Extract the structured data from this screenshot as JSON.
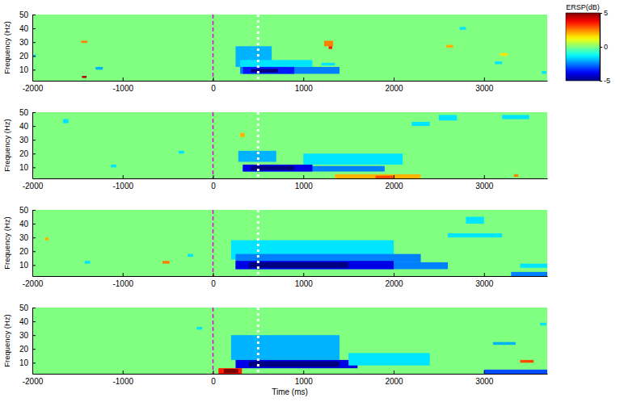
{
  "chart_data": [
    {
      "type": "heatmap",
      "y_label": "Frequency (Hz)",
      "xlim": [
        -2000,
        3700
      ],
      "xticks": [
        -2000,
        -1000,
        0,
        1000,
        2000,
        3000
      ],
      "ylim": [
        2,
        50
      ],
      "yticks": [
        10,
        20,
        30,
        40,
        50
      ],
      "colorbar": {
        "title": "ERSP(dB)",
        "range": [
          -5,
          5
        ],
        "ticks": [
          -5,
          0,
          5
        ]
      },
      "lines": [
        {
          "x": 0,
          "color": "#e000e0",
          "line_style": "dashed"
        },
        {
          "x": 500,
          "color": "#ffffff",
          "line_style": "dotted"
        }
      ],
      "cells": [
        {
          "x": [
            -1990,
            -1960
          ],
          "y": [
            19,
            21
          ],
          "value": -1.5
        },
        {
          "x": [
            -1460,
            -1390
          ],
          "y": [
            29.5,
            31
          ],
          "value": 2.5
        },
        {
          "x": [
            -1450,
            -1400
          ],
          "y": [
            4,
            5.5
          ],
          "value": 4.5
        },
        {
          "x": [
            -1300,
            -1220
          ],
          "y": [
            10,
            12
          ],
          "value": -2
        },
        {
          "x": [
            250,
            650
          ],
          "y": [
            12,
            27
          ],
          "value": -2
        },
        {
          "x": [
            300,
            1100
          ],
          "y": [
            12,
            17
          ],
          "value": -1.5
        },
        {
          "x": [
            300,
            1400
          ],
          "y": [
            7,
            12
          ],
          "value": -2.5
        },
        {
          "x": [
            330,
            900
          ],
          "y": [
            7,
            12
          ],
          "value": -3.5
        },
        {
          "x": [
            420,
            720
          ],
          "y": [
            8,
            10.5
          ],
          "value": -5
        },
        {
          "x": [
            1200,
            1350
          ],
          "y": [
            13,
            15
          ],
          "value": -1.5
        },
        {
          "x": [
            1230,
            1330
          ],
          "y": [
            27,
            31
          ],
          "value": 2.5
        },
        {
          "x": [
            1280,
            1320
          ],
          "y": [
            25,
            27
          ],
          "value": 3.5
        },
        {
          "x": [
            2580,
            2660
          ],
          "y": [
            26,
            28
          ],
          "value": 2
        },
        {
          "x": [
            2730,
            2800
          ],
          "y": [
            39,
            41
          ],
          "value": -1.5
        },
        {
          "x": [
            3180,
            3260
          ],
          "y": [
            20,
            22
          ],
          "value": 1.5
        },
        {
          "x": [
            3120,
            3200
          ],
          "y": [
            14,
            16
          ],
          "value": -1.5
        },
        {
          "x": [
            3640,
            3690
          ],
          "y": [
            7,
            9
          ],
          "value": -1.5
        }
      ]
    },
    {
      "type": "heatmap",
      "y_label": "Frequency (Hz)",
      "xlim": [
        -2000,
        3700
      ],
      "xticks": [
        -2000,
        -1000,
        0,
        1000,
        2000,
        3000
      ],
      "ylim": [
        2,
        50
      ],
      "yticks": [
        10,
        20,
        30,
        40,
        50
      ],
      "lines": [
        {
          "x": 0,
          "color": "#e000e0",
          "line_style": "dashed"
        },
        {
          "x": 500,
          "color": "#ffffff",
          "line_style": "dotted"
        }
      ],
      "cells": [
        {
          "x": [
            -1660,
            -1600
          ],
          "y": [
            42,
            45
          ],
          "value": -1.5
        },
        {
          "x": [
            -1130,
            -1070
          ],
          "y": [
            10,
            12
          ],
          "value": -1.5
        },
        {
          "x": [
            -380,
            -320
          ],
          "y": [
            20,
            22
          ],
          "value": -1.5
        },
        {
          "x": [
            300,
            350
          ],
          "y": [
            32,
            35
          ],
          "value": 2
        },
        {
          "x": [
            280,
            700
          ],
          "y": [
            14,
            22
          ],
          "value": -2
        },
        {
          "x": [
            1000,
            2100
          ],
          "y": [
            12,
            20
          ],
          "value": -1.5
        },
        {
          "x": [
            330,
            1900
          ],
          "y": [
            7,
            11
          ],
          "value": -2.5
        },
        {
          "x": [
            330,
            1100
          ],
          "y": [
            7,
            12
          ],
          "value": -4
        },
        {
          "x": [
            420,
            900
          ],
          "y": [
            8,
            11
          ],
          "value": -5
        },
        {
          "x": [
            1350,
            2300
          ],
          "y": [
            2,
            5
          ],
          "value": 2
        },
        {
          "x": [
            1800,
            2000
          ],
          "y": [
            2,
            4
          ],
          "value": 3
        },
        {
          "x": [
            2200,
            2400
          ],
          "y": [
            40,
            43
          ],
          "value": -1.5
        },
        {
          "x": [
            2500,
            2700
          ],
          "y": [
            44,
            48
          ],
          "value": -1.5
        },
        {
          "x": [
            3200,
            3500
          ],
          "y": [
            45,
            48
          ],
          "value": -1.5
        },
        {
          "x": [
            3330,
            3380
          ],
          "y": [
            3,
            5
          ],
          "value": 2.5
        }
      ]
    },
    {
      "type": "heatmap",
      "y_label": "Frequency (Hz)",
      "xlim": [
        -2000,
        3700
      ],
      "xticks": [
        -2000,
        -1000,
        0,
        1000,
        2000,
        3000
      ],
      "ylim": [
        2,
        50
      ],
      "yticks": [
        10,
        20,
        30,
        40,
        50
      ],
      "lines": [
        {
          "x": 0,
          "color": "#e000e0",
          "line_style": "dashed"
        },
        {
          "x": 500,
          "color": "#ffffff",
          "line_style": "dotted"
        }
      ],
      "cells": [
        {
          "x": [
            -1860,
            -1820
          ],
          "y": [
            28,
            30
          ],
          "value": 2
        },
        {
          "x": [
            -1420,
            -1360
          ],
          "y": [
            11,
            13
          ],
          "value": -1.5
        },
        {
          "x": [
            -560,
            -480
          ],
          "y": [
            11,
            13
          ],
          "value": 2.5
        },
        {
          "x": [
            -280,
            -220
          ],
          "y": [
            16,
            18
          ],
          "value": -1.5
        },
        {
          "x": [
            200,
            2000
          ],
          "y": [
            14,
            28
          ],
          "value": -1.5
        },
        {
          "x": [
            250,
            2300
          ],
          "y": [
            12,
            18
          ],
          "value": -2.5
        },
        {
          "x": [
            250,
            2600
          ],
          "y": [
            7,
            12
          ],
          "value": -2.5
        },
        {
          "x": [
            250,
            2000
          ],
          "y": [
            7,
            13
          ],
          "value": -4
        },
        {
          "x": [
            400,
            1500
          ],
          "y": [
            8,
            12
          ],
          "value": -5
        },
        {
          "x": [
            2600,
            3200
          ],
          "y": [
            30,
            33
          ],
          "value": -1.5
        },
        {
          "x": [
            2800,
            3000
          ],
          "y": [
            40,
            45
          ],
          "value": -1.5
        },
        {
          "x": [
            3300,
            3700
          ],
          "y": [
            2,
            5
          ],
          "value": -2.5
        },
        {
          "x": [
            3400,
            3700
          ],
          "y": [
            8,
            11
          ],
          "value": -1.5
        }
      ]
    },
    {
      "type": "heatmap",
      "y_label": "Frequency (Hz)",
      "x_label": "Time (ms)",
      "xlim": [
        -2000,
        3700
      ],
      "xticks": [
        -2000,
        -1000,
        0,
        1000,
        2000,
        3000
      ],
      "ylim": [
        2,
        50
      ],
      "yticks": [
        10,
        20,
        30,
        40,
        50
      ],
      "lines": [
        {
          "x": 0,
          "color": "#e000e0",
          "line_style": "dashed"
        },
        {
          "x": 500,
          "color": "#ffffff",
          "line_style": "dotted"
        }
      ],
      "cells": [
        {
          "x": [
            -180,
            -120
          ],
          "y": [
            34,
            36
          ],
          "value": -1.5
        },
        {
          "x": [
            200,
            1400
          ],
          "y": [
            12,
            30
          ],
          "value": -2
        },
        {
          "x": [
            250,
            1600
          ],
          "y": [
            6,
            12
          ],
          "value": -4
        },
        {
          "x": [
            400,
            1400
          ],
          "y": [
            7,
            11
          ],
          "value": -5
        },
        {
          "x": [
            1500,
            2400
          ],
          "y": [
            8,
            17
          ],
          "value": -1.5
        },
        {
          "x": [
            60,
            320
          ],
          "y": [
            2,
            6
          ],
          "value": 3.5
        },
        {
          "x": [
            120,
            280
          ],
          "y": [
            2.5,
            5.5
          ],
          "value": 5
        },
        {
          "x": [
            3100,
            3350
          ],
          "y": [
            23,
            25
          ],
          "value": -2
        },
        {
          "x": [
            3000,
            3700
          ],
          "y": [
            2,
            5
          ],
          "value": -3
        },
        {
          "x": [
            3400,
            3550
          ],
          "y": [
            10,
            12
          ],
          "value": 3
        },
        {
          "x": [
            3620,
            3690
          ],
          "y": [
            37,
            39
          ],
          "value": -1.5
        }
      ]
    }
  ]
}
